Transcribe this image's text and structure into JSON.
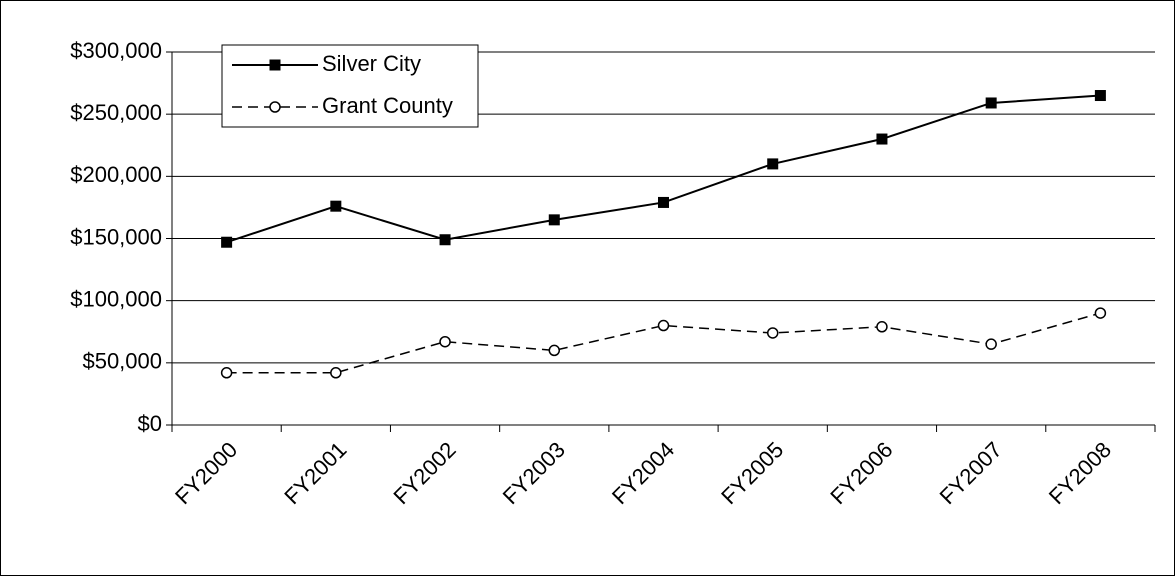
{
  "chart_data": {
    "type": "line",
    "categories": [
      "FY2000",
      "FY2001",
      "FY2002",
      "FY2003",
      "FY2004",
      "FY2005",
      "FY2006",
      "FY2007",
      "FY2008"
    ],
    "series": [
      {
        "name": "Silver City",
        "color": "#000000",
        "dash": false,
        "marker": "square",
        "values": [
          147000,
          176000,
          149000,
          165000,
          179000,
          210000,
          230000,
          259000,
          265000
        ]
      },
      {
        "name": "Grant County",
        "color": "#000000",
        "dash": true,
        "marker": "circle",
        "values": [
          42000,
          42000,
          67000,
          60000,
          80000,
          74000,
          79000,
          65000,
          90000
        ]
      }
    ],
    "ylim": [
      0,
      300000
    ],
    "yticks": [
      {
        "value": 0,
        "label": "$0"
      },
      {
        "value": 50000,
        "label": "$50,000"
      },
      {
        "value": 100000,
        "label": "$100,000"
      },
      {
        "value": 150000,
        "label": "$150,000"
      },
      {
        "value": 200000,
        "label": "$200,000"
      },
      {
        "value": 250000,
        "label": "$250,000"
      },
      {
        "value": 300000,
        "label": "$300,000"
      }
    ],
    "grid": true,
    "legend": "upper left"
  }
}
